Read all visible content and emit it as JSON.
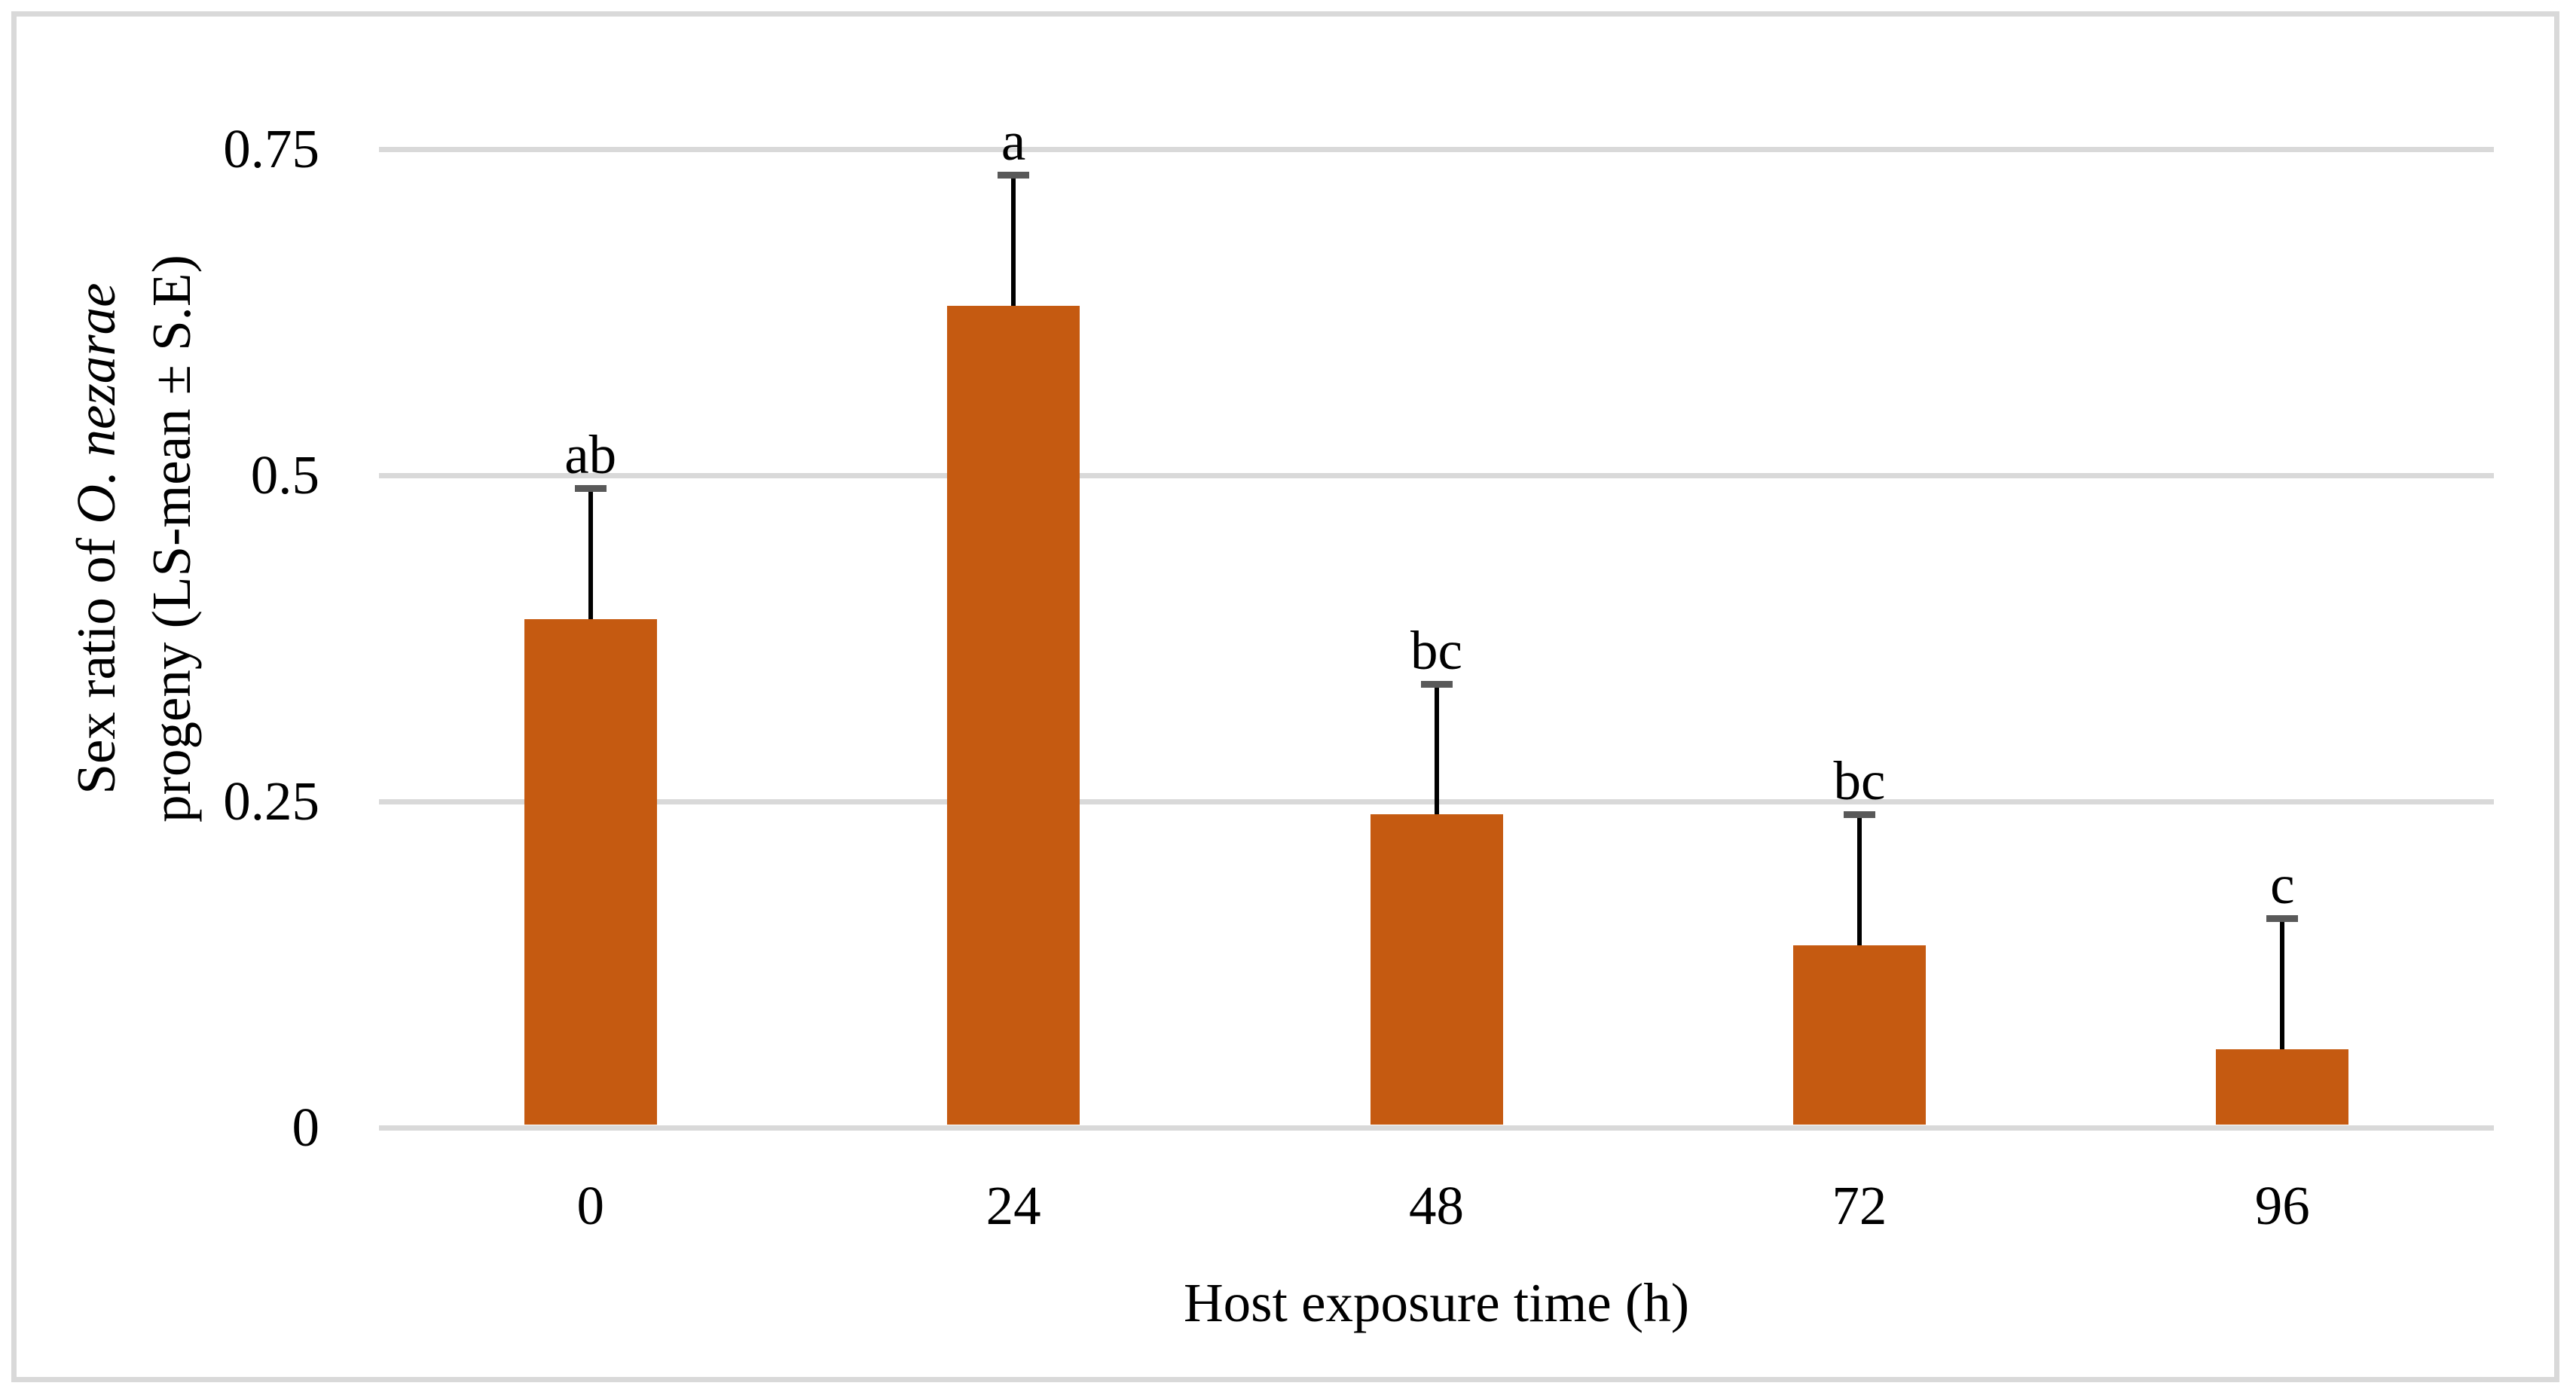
{
  "figure": {
    "background": "#ffffff",
    "frame_color": "#d9d9d9"
  },
  "chart_data": {
    "type": "bar",
    "title": "",
    "xlabel": "Host exposure time (h)",
    "ylabel": {
      "line1_prefix": "Sex ratio of ",
      "line1_italic": "O. nezarae",
      "line2": "progeny (LS-mean ± S.E)"
    },
    "categories": [
      "0",
      "24",
      "48",
      "72",
      "96"
    ],
    "values": [
      0.39,
      0.63,
      0.24,
      0.14,
      0.06
    ],
    "se_upper": [
      0.1,
      0.1,
      0.1,
      0.1,
      0.1
    ],
    "sig_letters": [
      "ab",
      "a",
      "bc",
      "bc",
      "c"
    ],
    "yticks": [
      {
        "value": 0,
        "label": "0"
      },
      {
        "value": 0.25,
        "label": "0.25"
      },
      {
        "value": 0.5,
        "label": "0.5"
      },
      {
        "value": 0.75,
        "label": "0.75"
      }
    ],
    "ylim": [
      0,
      0.8
    ],
    "grid": "horizontal",
    "legend": "none",
    "colors": {
      "bar": "#C55A11",
      "gridline": "#D9D9D9",
      "error_line": "#000000",
      "error_cap": "#595959",
      "text": "#000000"
    }
  }
}
